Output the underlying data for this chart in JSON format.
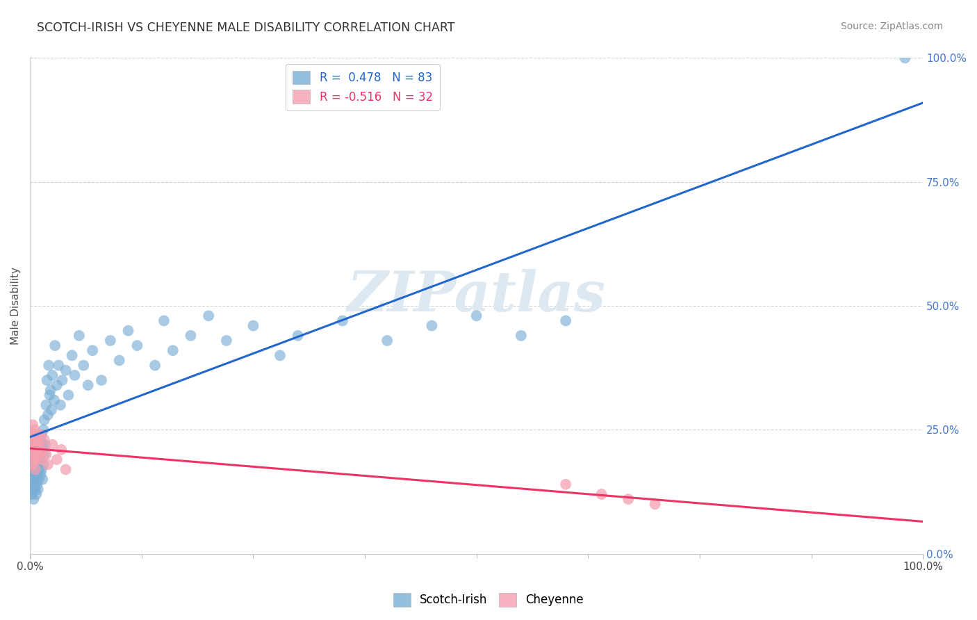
{
  "title": "SCOTCH-IRISH VS CHEYENNE MALE DISABILITY CORRELATION CHART",
  "source": "Source: ZipAtlas.com",
  "ylabel": "Male Disability",
  "xlim": [
    0,
    1.0
  ],
  "ylim": [
    0,
    1.0
  ],
  "ytick_positions": [
    0.0,
    0.25,
    0.5,
    0.75,
    1.0
  ],
  "ytick_labels": [
    "0.0%",
    "25.0%",
    "50.0%",
    "75.0%",
    "100.0%"
  ],
  "scotch_irish_color": "#7aaed6",
  "cheyenne_color": "#f4a0b0",
  "scotch_irish_line_color": "#2266cc",
  "cheyenne_line_color": "#ee3366",
  "watermark_text": "ZIPatlas",
  "legend_scotch_r": "0.478",
  "legend_scotch_n": "83",
  "legend_cheyenne_r": "-0.516",
  "legend_cheyenne_n": "32",
  "background_color": "#ffffff",
  "grid_color": "#cccccc",
  "scotch_irish_x": [
    0.001,
    0.002,
    0.002,
    0.003,
    0.003,
    0.003,
    0.004,
    0.004,
    0.004,
    0.005,
    0.005,
    0.005,
    0.006,
    0.006,
    0.006,
    0.007,
    0.007,
    0.007,
    0.008,
    0.008,
    0.008,
    0.009,
    0.009,
    0.009,
    0.01,
    0.01,
    0.01,
    0.011,
    0.011,
    0.012,
    0.012,
    0.013,
    0.013,
    0.014,
    0.014,
    0.015,
    0.015,
    0.016,
    0.016,
    0.017,
    0.018,
    0.019,
    0.02,
    0.021,
    0.022,
    0.023,
    0.024,
    0.025,
    0.027,
    0.028,
    0.03,
    0.032,
    0.034,
    0.036,
    0.04,
    0.043,
    0.047,
    0.05,
    0.055,
    0.06,
    0.065,
    0.07,
    0.08,
    0.09,
    0.1,
    0.11,
    0.12,
    0.14,
    0.15,
    0.16,
    0.18,
    0.2,
    0.22,
    0.25,
    0.28,
    0.3,
    0.35,
    0.4,
    0.45,
    0.5,
    0.55,
    0.6,
    0.98
  ],
  "scotch_irish_y": [
    0.14,
    0.17,
    0.12,
    0.16,
    0.13,
    0.18,
    0.15,
    0.11,
    0.19,
    0.14,
    0.17,
    0.2,
    0.13,
    0.16,
    0.22,
    0.15,
    0.18,
    0.12,
    0.16,
    0.2,
    0.14,
    0.18,
    0.22,
    0.13,
    0.17,
    0.21,
    0.15,
    0.19,
    0.23,
    0.16,
    0.2,
    0.17,
    0.24,
    0.15,
    0.22,
    0.18,
    0.25,
    0.2,
    0.27,
    0.22,
    0.3,
    0.35,
    0.28,
    0.38,
    0.32,
    0.33,
    0.29,
    0.36,
    0.31,
    0.42,
    0.34,
    0.38,
    0.3,
    0.35,
    0.37,
    0.32,
    0.4,
    0.36,
    0.44,
    0.38,
    0.34,
    0.41,
    0.35,
    0.43,
    0.39,
    0.45,
    0.42,
    0.38,
    0.47,
    0.41,
    0.44,
    0.48,
    0.43,
    0.46,
    0.4,
    0.44,
    0.47,
    0.43,
    0.46,
    0.48,
    0.44,
    0.47,
    1.0
  ],
  "cheyenne_x": [
    0.001,
    0.002,
    0.002,
    0.003,
    0.003,
    0.004,
    0.004,
    0.005,
    0.005,
    0.006,
    0.006,
    0.007,
    0.007,
    0.008,
    0.008,
    0.009,
    0.01,
    0.011,
    0.012,
    0.013,
    0.014,
    0.016,
    0.018,
    0.02,
    0.025,
    0.03,
    0.035,
    0.04,
    0.6,
    0.64,
    0.67,
    0.7
  ],
  "cheyenne_y": [
    0.22,
    0.18,
    0.24,
    0.2,
    0.26,
    0.19,
    0.23,
    0.21,
    0.25,
    0.17,
    0.22,
    0.24,
    0.2,
    0.19,
    0.23,
    0.21,
    0.22,
    0.2,
    0.24,
    0.19,
    0.21,
    0.23,
    0.2,
    0.18,
    0.22,
    0.19,
    0.21,
    0.17,
    0.14,
    0.12,
    0.11,
    0.1
  ]
}
